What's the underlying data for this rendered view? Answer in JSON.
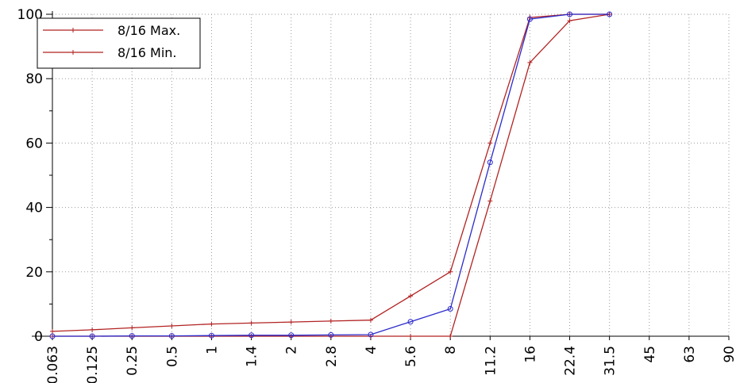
{
  "chart_data": {
    "type": "line",
    "title": "",
    "xlabel": "",
    "ylabel": "",
    "categories": [
      "0.063",
      "0.125",
      "0.25",
      "0.5",
      "1",
      "1.4",
      "2",
      "2.8",
      "4",
      "5.6",
      "8",
      "11.2",
      "16",
      "22.4",
      "31.5",
      "45",
      "63",
      "90"
    ],
    "ylim": [
      0,
      100
    ],
    "yticks": [
      "0",
      "20",
      "40",
      "60",
      "80",
      "100"
    ],
    "grid": true,
    "legend_position": "top-left",
    "series": [
      {
        "name": "8/16 Max.",
        "color": "#b22222",
        "marker": "plus",
        "values": [
          1.5,
          2.0,
          2.6,
          3.2,
          3.8,
          4.1,
          4.4,
          4.7,
          5.0,
          12.5,
          20,
          60,
          99,
          100,
          100,
          null,
          null,
          null
        ]
      },
      {
        "name": "8/16 Min.",
        "color": "#b22222",
        "marker": "plus",
        "values": [
          0,
          0,
          0,
          0,
          0,
          0,
          0,
          0,
          0,
          0,
          0,
          42,
          85,
          98,
          100,
          null,
          null,
          null
        ]
      },
      {
        "name": "",
        "color": "#2b2bcc",
        "marker": "circle",
        "values": [
          0,
          0,
          0.1,
          0.1,
          0.2,
          0.3,
          0.3,
          0.4,
          0.5,
          4.5,
          8.5,
          54,
          98.5,
          100,
          100,
          null,
          null,
          null
        ]
      }
    ]
  }
}
